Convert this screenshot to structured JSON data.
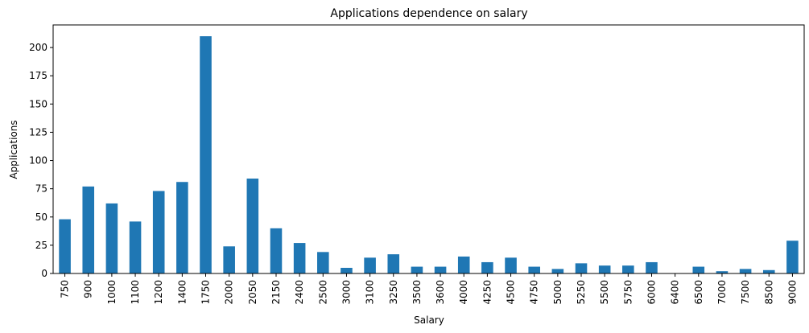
{
  "chart_data": {
    "type": "bar",
    "title": "Applications dependence on salary",
    "xlabel": "Salary",
    "ylabel": "Applications",
    "ylim": [
      0,
      220
    ],
    "yticks": [
      0,
      25,
      50,
      75,
      100,
      125,
      150,
      175,
      200
    ],
    "grid": false,
    "legend": "none",
    "bar_color": "#1f77b4",
    "categories": [
      "750",
      "900",
      "1000",
      "1100",
      "1200",
      "1400",
      "1750",
      "2000",
      "2050",
      "2150",
      "2400",
      "2500",
      "3000",
      "3100",
      "3250",
      "3500",
      "3600",
      "4000",
      "4250",
      "4500",
      "4750",
      "5000",
      "5250",
      "5500",
      "5750",
      "6000",
      "6400",
      "6500",
      "7000",
      "7500",
      "8500",
      "9000"
    ],
    "values": [
      48,
      77,
      62,
      46,
      73,
      81,
      210,
      24,
      84,
      40,
      27,
      19,
      5,
      14,
      17,
      6,
      6,
      15,
      10,
      14,
      6,
      4,
      9,
      7,
      7,
      10,
      0,
      6,
      2,
      4,
      3,
      29
    ]
  }
}
